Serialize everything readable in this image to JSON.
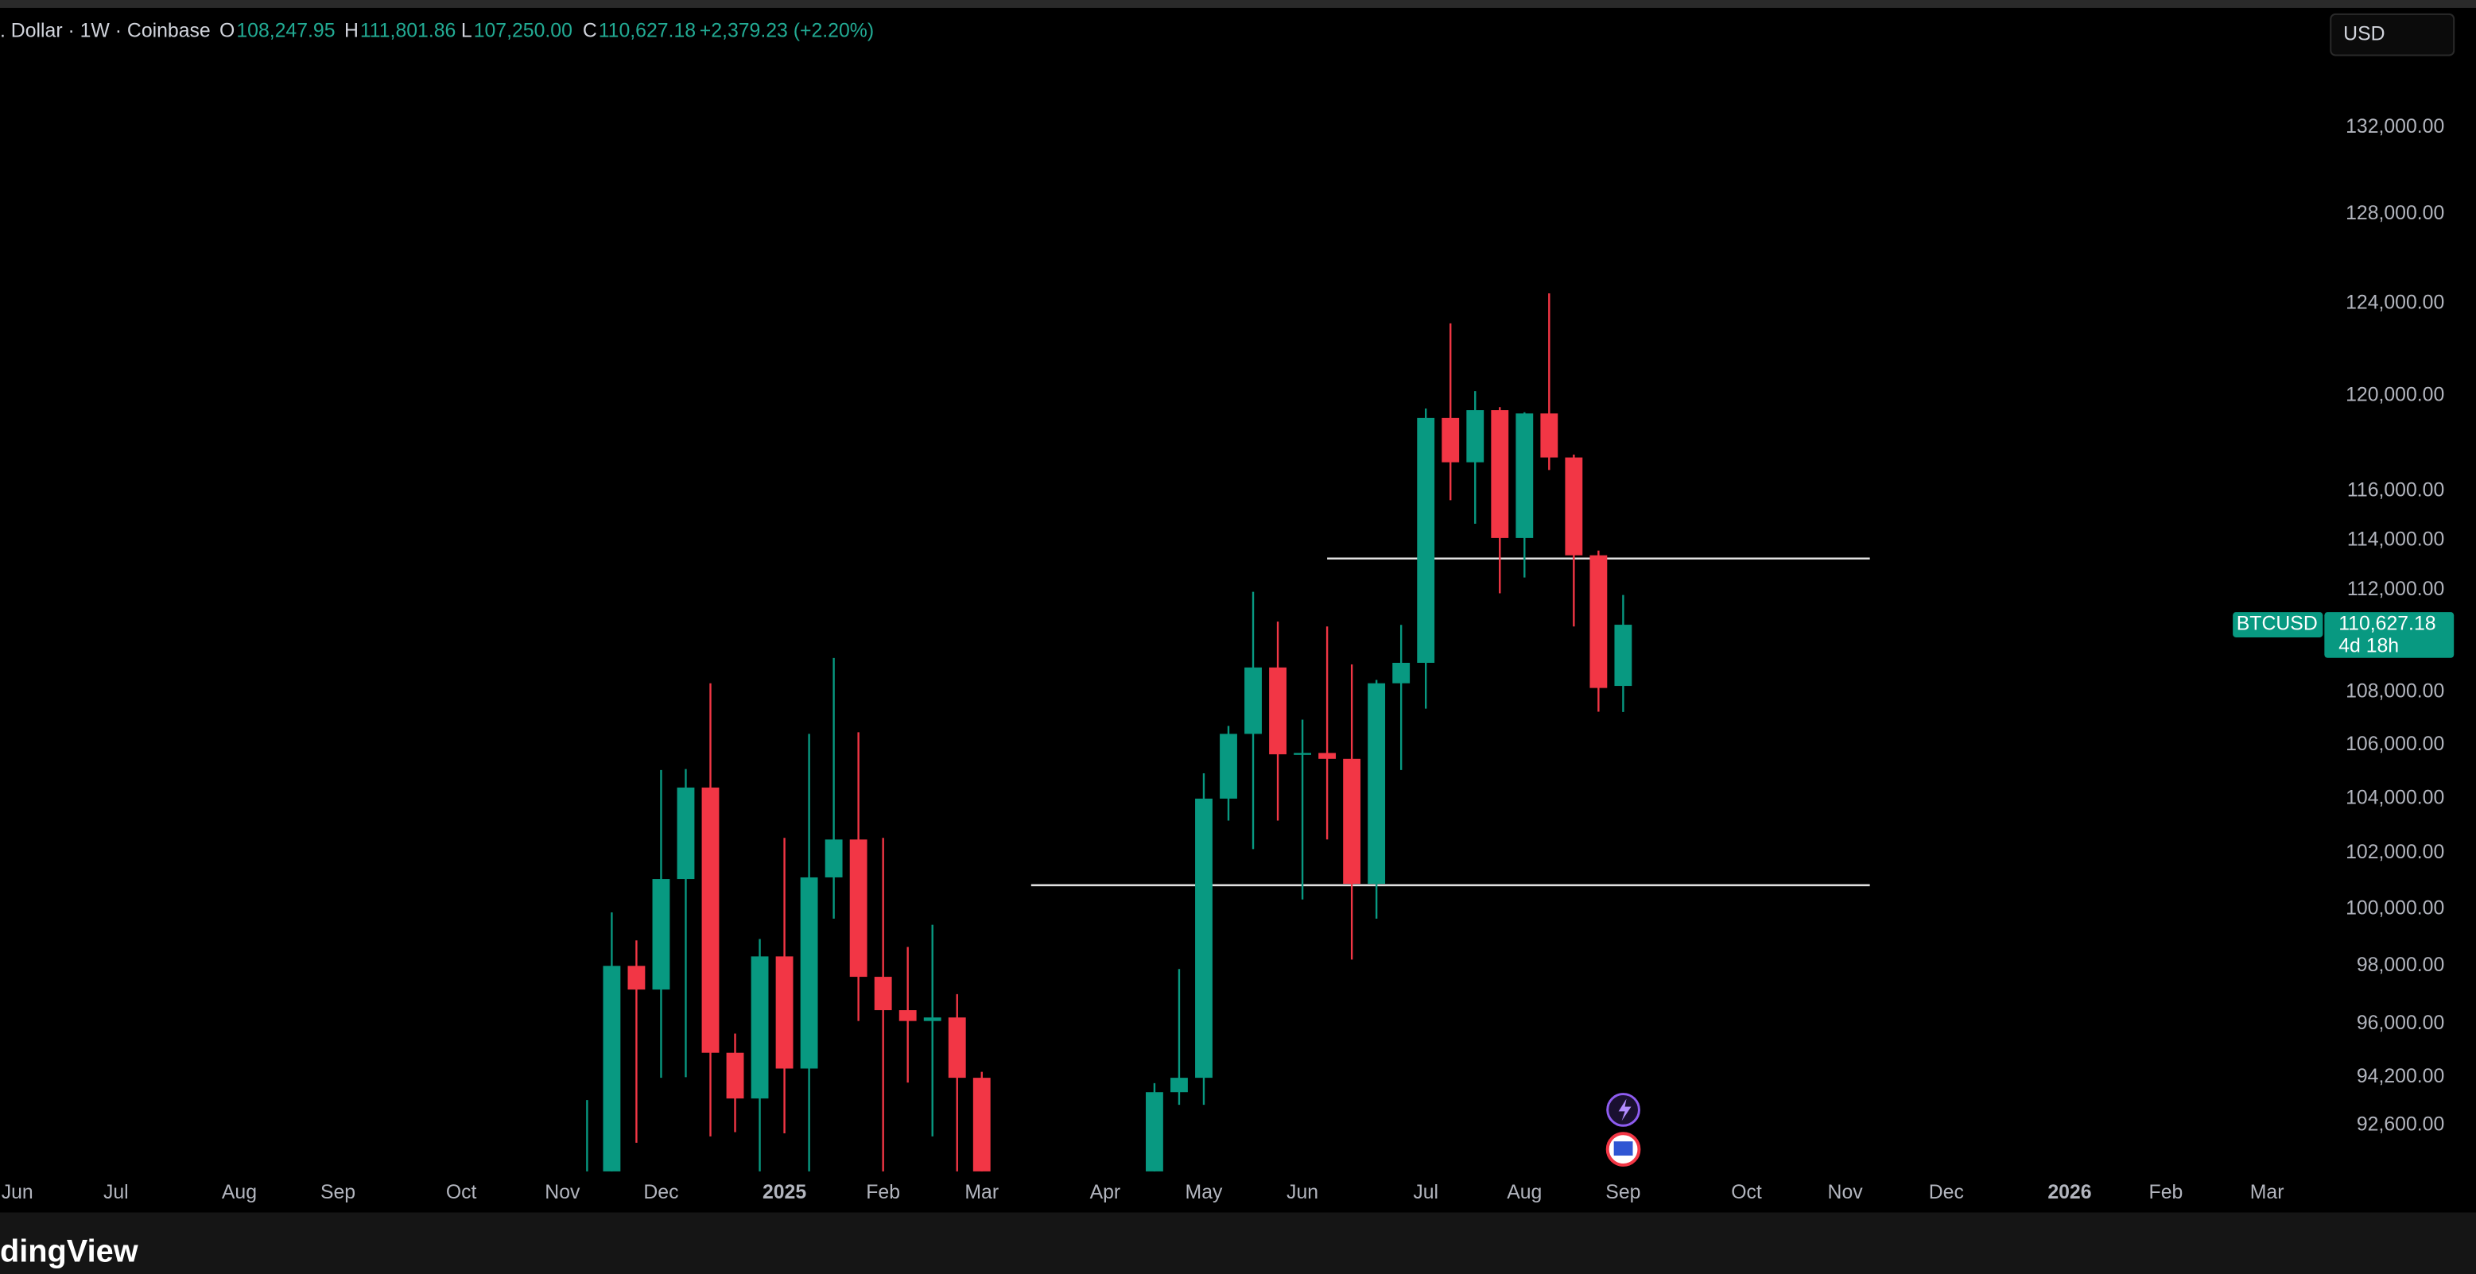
{
  "header": {
    "symbol": ". Dollar · 1W · Coinbase",
    "ohlc": [
      {
        "key": "O",
        "value": "108,247.95"
      },
      {
        "key": "H",
        "value": "111,801.86"
      },
      {
        "key": "L",
        "value": "107,250.00"
      },
      {
        "key": "C",
        "value": "110,627.18"
      }
    ],
    "change": "+2,379.23 (+2.20%)"
  },
  "currency_button": "USD",
  "logo": "dingView",
  "chart_data": {
    "type": "candlestick",
    "log_scale": true,
    "up_color": "#089981",
    "down_color": "#f23645",
    "x": [
      0,
      1,
      2,
      3,
      4,
      5,
      6,
      7,
      8,
      9,
      10,
      11,
      12,
      13,
      14,
      15,
      16,
      23,
      24,
      25,
      26,
      27,
      28,
      29,
      30,
      31,
      32,
      33,
      34,
      35,
      36,
      37,
      38,
      39,
      40,
      41,
      42
    ],
    "open": [
      89000,
      90500,
      98000,
      97180,
      101070,
      104410,
      95020,
      93490,
      98330,
      94490,
      101130,
      102500,
      97620,
      96470,
      96100,
      96220,
      94180,
      88000,
      93700,
      94180,
      104000,
      106420,
      108960,
      105650,
      105700,
      105480,
      100900,
      108350,
      109140,
      119060,
      117200,
      119390,
      114090,
      119250,
      117400,
      113390,
      108247.95
    ],
    "high": [
      93440,
      99880,
      98890,
      105060,
      105100,
      108350,
      95670,
      98940,
      102560,
      106420,
      109330,
      106480,
      102560,
      98660,
      99440,
      97020,
      94380,
      94000,
      97890,
      104940,
      106720,
      111930,
      110750,
      106960,
      110560,
      109080,
      108480,
      110620,
      119460,
      123130,
      120200,
      119520,
      119300,
      124450,
      117520,
      113580,
      111801.86
    ],
    "low": [
      88000,
      89500,
      92030,
      94180,
      94200,
      92240,
      92380,
      90500,
      92340,
      90500,
      99660,
      96100,
      90500,
      94020,
      92240,
      90500,
      89000,
      87000,
      93280,
      93280,
      103190,
      102150,
      103190,
      100340,
      102500,
      98220,
      99660,
      105060,
      107380,
      115630,
      114670,
      111870,
      112500,
      116880,
      110560,
      107260,
      107250
    ],
    "close": [
      91000,
      98000,
      97180,
      101070,
      104410,
      95020,
      93490,
      98330,
      94490,
      101130,
      102500,
      97620,
      96470,
      96100,
      96220,
      94180,
      90000,
      93700,
      94180,
      104000,
      106420,
      108960,
      105650,
      105700,
      105480,
      100900,
      108350,
      109140,
      119060,
      117200,
      119390,
      114090,
      119250,
      117400,
      113390,
      108170,
      110627.18
    ],
    "xlim": [
      -23.8,
      70.3
    ],
    "xticks": [
      {
        "value": -23.1,
        "label": "Jun"
      },
      {
        "value": -19.1,
        "label": "Jul"
      },
      {
        "value": -14.1,
        "label": "Aug"
      },
      {
        "value": -10.1,
        "label": "Sep"
      },
      {
        "value": -5.1,
        "label": "Oct"
      },
      {
        "value": -1.0,
        "label": "Nov"
      },
      {
        "value": 3.0,
        "label": "Dec"
      },
      {
        "value": 8.0,
        "label": "2025"
      },
      {
        "value": 12.0,
        "label": "Feb"
      },
      {
        "value": 16.0,
        "label": "Mar"
      },
      {
        "value": 21.0,
        "label": "Apr"
      },
      {
        "value": 25.0,
        "label": "May"
      },
      {
        "value": 29.0,
        "label": "Jun"
      },
      {
        "value": 34.0,
        "label": "Jul"
      },
      {
        "value": 38.0,
        "label": "Aug"
      },
      {
        "value": 42.0,
        "label": "Sep"
      },
      {
        "value": 47.0,
        "label": "Oct"
      },
      {
        "value": 51.0,
        "label": "Nov"
      },
      {
        "value": 55.1,
        "label": "Dec"
      },
      {
        "value": 60.1,
        "label": "2026"
      },
      {
        "value": 64.0,
        "label": "Feb"
      },
      {
        "value": 68.1,
        "label": "Mar"
      }
    ],
    "ylim": [
      91100,
      137500
    ],
    "yticks": [
      {
        "value": 92600,
        "label": "92,600.00"
      },
      {
        "value": 94200,
        "label": "94,200.00"
      },
      {
        "value": 96000,
        "label": "96,000.00"
      },
      {
        "value": 98000,
        "label": "98,000.00"
      },
      {
        "value": 100000,
        "label": "100,000.00"
      },
      {
        "value": 102000,
        "label": "102,000.00"
      },
      {
        "value": 104000,
        "label": "104,000.00"
      },
      {
        "value": 106000,
        "label": "106,000.00"
      },
      {
        "value": 108000,
        "label": "108,000.00"
      },
      {
        "value": 112000,
        "label": "112,000.00"
      },
      {
        "value": 114000,
        "label": "114,000.00"
      },
      {
        "value": 116000,
        "label": "116,000.00"
      },
      {
        "value": 120000,
        "label": "120,000.00"
      },
      {
        "value": 124000,
        "label": "124,000.00"
      },
      {
        "value": 128000,
        "label": "128,000.00"
      },
      {
        "value": 132000,
        "label": "132,000.00"
      }
    ],
    "hlines": [
      {
        "value": 113260,
        "x0": 30.0,
        "x1": 52.0
      },
      {
        "value": 100850,
        "x0": 18.0,
        "x1": 52.0
      }
    ],
    "last_price": {
      "symbol": "BTCUSD",
      "value": 110627.18,
      "value_label": "110,627.18",
      "countdown": "4d 18h"
    }
  }
}
